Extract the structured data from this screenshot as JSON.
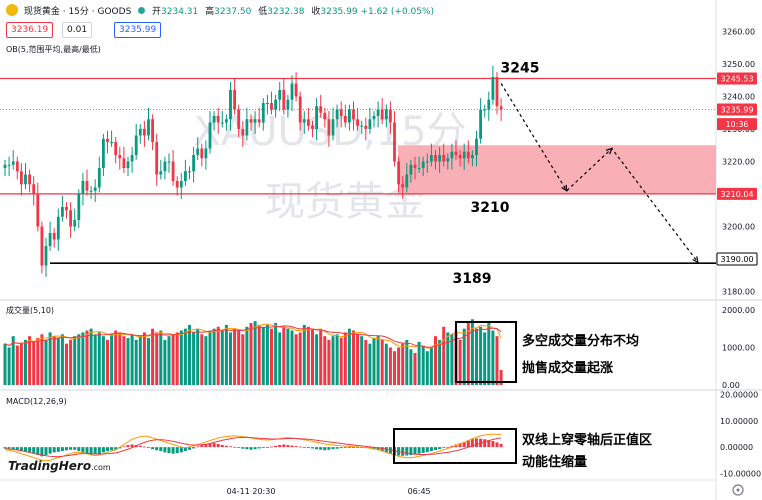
{
  "header": {
    "symbol": "现货黄金 · 15分 · GOODS",
    "ohlc": [
      {
        "k": "开",
        "v": "3234.31"
      },
      {
        "k": "高",
        "v": "3237.50"
      },
      {
        "k": "低",
        "v": "3232.38"
      },
      {
        "k": "收",
        "v": "3235.99 +1.62 (+0.05%)"
      }
    ],
    "sell_price": "3236.19",
    "spread": "0.01",
    "buy_price": "3235.99",
    "indicator_label": "OB(5,范围平均,最高/最低)"
  },
  "colors": {
    "up": "#089981",
    "down": "#f23645",
    "zone_fill": "#f7a6ae",
    "line_red": "#f23645",
    "line_black": "#000000",
    "macd_fast": "#ff9800",
    "macd_slow": "#f23645"
  },
  "chart_data": [
    {
      "type": "candlestick",
      "watermark": [
        "XAUUSD,15分",
        "现货黄金"
      ],
      "y_ticks": [
        "3260.00",
        "3250.00",
        "3240.00",
        "3230.00",
        "3220.00",
        "3210.00",
        "3200.00",
        "3190.00",
        "3180.00"
      ],
      "ylim": [
        3178,
        3266
      ],
      "price_tags": [
        {
          "label": "3245.53",
          "value": 3245.53,
          "color": "#f23645"
        },
        {
          "label": "3235.99",
          "value": 3235.99,
          "color": "#f23645"
        },
        {
          "label": "10:36",
          "value": 3231.5,
          "color": "#f23645"
        },
        {
          "label": "3210.04",
          "value": 3210.04,
          "color": "#f23645"
        },
        {
          "label": "3190.00",
          "value": 3190,
          "color": "#000000"
        }
      ],
      "levels": [
        {
          "label": "3245",
          "value": 3245.53,
          "color": "#f23645"
        },
        {
          "label": "3210",
          "value": 3210.04,
          "color": "#f23645"
        },
        {
          "label": "3189",
          "value": 3188.7,
          "color": "#000000"
        }
      ],
      "zone": {
        "from": 3210,
        "to": 3225
      },
      "projection": [
        {
          "bar": 121,
          "value": 3244
        },
        {
          "bar": 137,
          "value": 3211
        },
        {
          "bar": 148,
          "value": 3224
        },
        {
          "bar": 169,
          "value": 3189
        }
      ],
      "closes": [
        3219,
        3219,
        3220,
        3217,
        3213,
        3216,
        3213,
        3210,
        3200,
        3188,
        3194,
        3198,
        3196,
        3203,
        3206,
        3205,
        3200,
        3202,
        3210,
        3214,
        3211,
        3211,
        3212,
        3218,
        3227,
        3226,
        3226,
        3222,
        3221,
        3218,
        3220,
        3222,
        3228,
        3230,
        3228,
        3233,
        3226,
        3216,
        3217,
        3220,
        3220,
        3214,
        3212,
        3214,
        3217,
        3217,
        3222,
        3224,
        3221,
        3224,
        3232,
        3234,
        3232,
        3232,
        3233,
        3242,
        3236,
        3230,
        3228,
        3233,
        3232,
        3233,
        3232,
        3238,
        3238,
        3236,
        3239,
        3242,
        3236,
        3239,
        3244,
        3240,
        3232,
        3233,
        3231,
        3230,
        3237,
        3235,
        3233,
        3228,
        3233,
        3236,
        3234,
        3232,
        3236,
        3233,
        3231,
        3231,
        3230,
        3233,
        3234,
        3236,
        3233,
        3236,
        3232,
        3220,
        3213,
        3212,
        3216,
        3219,
        3218,
        3218,
        3220,
        3220,
        3222,
        3220,
        3222,
        3220,
        3221,
        3223,
        3222,
        3221,
        3223,
        3221,
        3222,
        3227,
        3236,
        3236,
        3239,
        3246,
        3237,
        3236
      ],
      "last_bar": 121
    },
    {
      "type": "bar",
      "title": "成交量(5,10)",
      "y_ticks": [
        "2000.00",
        "1000.00",
        "0.00"
      ],
      "ylim": [
        0,
        2050
      ],
      "annotations": [
        "多空成交量分布不均",
        "抛售成交量起涨"
      ],
      "values": [
        1100,
        1000,
        1300,
        1050,
        1100,
        1200,
        1300,
        1150,
        1250,
        1350,
        1200,
        1400,
        1300,
        1250,
        1350,
        1100,
        1200,
        1300,
        1350,
        1400,
        1450,
        1500,
        1350,
        1400,
        1300,
        1200,
        1350,
        1450,
        1400,
        1300,
        1250,
        1350,
        1200,
        1300,
        1400,
        1250,
        1500,
        1400,
        1450,
        1200,
        1300,
        1350,
        1400,
        1450,
        1500,
        1600,
        1400,
        1500,
        1350,
        1300,
        1450,
        1500,
        1550,
        1450,
        1600,
        1400,
        1500,
        1450,
        1350,
        1550,
        1650,
        1700,
        1600,
        1550,
        1600,
        1500,
        1650,
        1400,
        1550,
        1500,
        1450,
        1350,
        1400,
        1600,
        1550,
        1500,
        1350,
        1450,
        1300,
        1200,
        1300,
        1350,
        1250,
        1400,
        1500,
        1450,
        1350,
        1300,
        1200,
        1100,
        1250,
        1300,
        1200,
        1100,
        1000,
        900,
        1000,
        1100,
        1200,
        950,
        850,
        1150,
        1050,
        900,
        1000,
        1300,
        1200,
        1550,
        1400,
        1350,
        1450,
        1200,
        1500,
        1650,
        1750,
        1500,
        1550,
        1400,
        1700,
        1450,
        1300,
        400
      ]
    },
    {
      "type": "line",
      "title": "MACD(12,26,9)",
      "y_ticks": [
        "20.00000",
        "10.00000",
        "0.00000",
        "-10.00000"
      ],
      "ylim": [
        -11,
        21
      ],
      "annotations": [
        "双线上穿零轴后正值区",
        "动能住缩量"
      ],
      "histogram": [
        -0.5,
        -0.5,
        -0.8,
        -1,
        -1.5,
        -1.8,
        -2,
        -2.5,
        -3,
        -3.5,
        -3,
        -2.5,
        -2,
        -1.8,
        -1.5,
        -1.2,
        -1,
        -1,
        -1.5,
        -2,
        -2.5,
        -3,
        -2.8,
        -2.5,
        -2,
        -1.5,
        -1.2,
        -1,
        -0.5,
        0.3,
        0.8,
        1,
        0.8,
        0.5,
        0.2,
        -0.3,
        -0.8,
        -1.2,
        -1.5,
        -2,
        -2.3,
        -2.5,
        -2.3,
        -2,
        -1.5,
        -1,
        -0.5,
        0.3,
        0.8,
        1.2,
        1.5,
        1.5,
        1.2,
        0.8,
        0.5,
        0.3,
        0.1,
        -0.3,
        -0.6,
        -0.8,
        -1,
        -0.8,
        -0.5,
        -0.3,
        -0.1,
        0.2,
        0.5,
        0.8,
        1,
        0.8,
        0.6,
        0.4,
        0.2,
        0,
        -0.3,
        -0.5,
        -0.8,
        -1,
        -1.2,
        -1,
        -0.8,
        -0.6,
        -0.4,
        -0.2,
        -0.1,
        0,
        -0.1,
        -0.2,
        -0.3,
        -0.5,
        -0.8,
        -1.2,
        -1.5,
        -2,
        -2.5,
        -3,
        -3.2,
        -3.3,
        -3.2,
        -3,
        -2.8,
        -2.5,
        -2.2,
        -1.9,
        -1.5,
        -1.1,
        -0.7,
        -0.3,
        0.1,
        0.5,
        1,
        1.5,
        2,
        2.6,
        3.1,
        3.3,
        3.2,
        3,
        2.7,
        2.3,
        1.8,
        1.2
      ],
      "macd": [
        -1,
        -1.2,
        -1.5,
        -2,
        -2.5,
        -3,
        -3.5,
        -4,
        -4.5,
        -5,
        -5.2,
        -5,
        -4.5,
        -4,
        -3.5,
        -3,
        -2.5,
        -2,
        -2,
        -2.2,
        -2.5,
        -3,
        -3.2,
        -3,
        -2.5,
        -2,
        -1.5,
        -1,
        0,
        1,
        2,
        3,
        3.5,
        4,
        4.2,
        4,
        3.5,
        3,
        2.5,
        2,
        1.5,
        1,
        0.5,
        0,
        -0.2,
        0,
        0.5,
        1,
        1.5,
        2,
        2.5,
        3,
        3.5,
        3.8,
        4,
        4.2,
        4.3,
        4.2,
        4,
        3.8,
        3.5,
        3.2,
        3,
        2.8,
        2.7,
        2.8,
        3,
        3.2,
        3.5,
        3.6,
        3.5,
        3.3,
        3,
        2.8,
        2.5,
        2.2,
        1.8,
        1.5,
        1.2,
        1,
        0.8,
        0.6,
        0.5,
        0.4,
        0.3,
        0.2,
        0.1,
        0,
        -0.2,
        -0.4,
        -0.7,
        -1,
        -1.5,
        -2,
        -2.5,
        -3,
        -3.5,
        -3.8,
        -4,
        -4,
        -3.8,
        -3.5,
        -3.2,
        -2.8,
        -2.4,
        -2,
        -1.5,
        -1,
        -0.5,
        0,
        0.6,
        1.2,
        1.8,
        2.5,
        3.2,
        3.8,
        4.3,
        4.6,
        4.8,
        4.9,
        4.9,
        4.8
      ],
      "signal": [
        -0.5,
        -0.7,
        -0.9,
        -1.1,
        -1.4,
        -1.7,
        -2,
        -2.4,
        -2.7,
        -3,
        -3.3,
        -3.5,
        -3.6,
        -3.6,
        -3.5,
        -3.3,
        -3.1,
        -2.8,
        -2.6,
        -2.5,
        -2.4,
        -2.5,
        -2.6,
        -2.6,
        -2.6,
        -2.5,
        -2.4,
        -2.2,
        -1.8,
        -1.3,
        -0.8,
        -0.2,
        0.5,
        1.2,
        1.8,
        2.3,
        2.6,
        2.8,
        2.8,
        2.7,
        2.5,
        2.2,
        1.9,
        1.5,
        1.2,
        0.9,
        0.8,
        0.8,
        0.9,
        1.1,
        1.4,
        1.8,
        2.2,
        2.6,
        2.9,
        3.2,
        3.5,
        3.6,
        3.7,
        3.7,
        3.6,
        3.5,
        3.4,
        3.3,
        3.2,
        3.1,
        3.1,
        3.1,
        3.2,
        3.3,
        3.3,
        3.3,
        3.2,
        3.1,
        3,
        2.8,
        2.6,
        2.4,
        2.2,
        2,
        1.8,
        1.6,
        1.4,
        1.2,
        1,
        0.8,
        0.6,
        0.5,
        0.3,
        0.1,
        -0.1,
        -0.3,
        -0.5,
        -0.8,
        -1.1,
        -1.4,
        -1.7,
        -2,
        -2.3,
        -2.5,
        -2.7,
        -2.8,
        -2.8,
        -2.8,
        -2.7,
        -2.6,
        -2.4,
        -2.2,
        -2,
        -1.7,
        -1.4,
        -1,
        -0.5,
        0,
        0.5,
        1,
        1.5,
        2,
        2.5,
        2.9,
        3.3,
        3.5
      ]
    }
  ],
  "time_labels": [
    {
      "label": "04-11 20:30",
      "bar": 60
    },
    {
      "label": "06:45",
      "bar": 101
    }
  ],
  "branding": {
    "logo": "TradingHero",
    "domain": ".com"
  }
}
